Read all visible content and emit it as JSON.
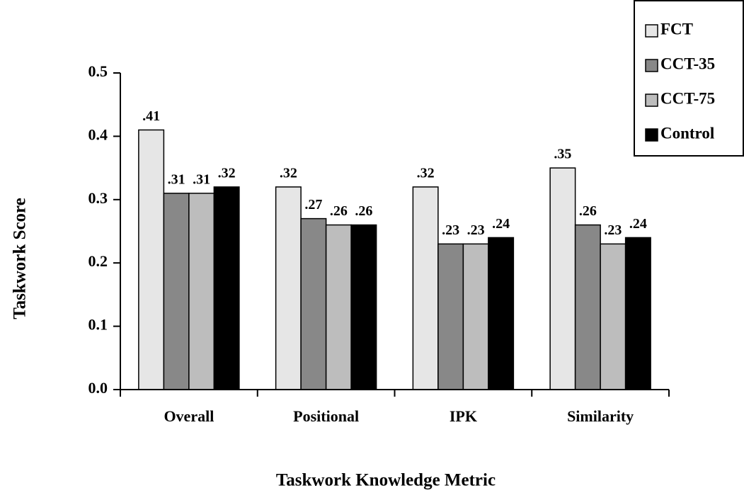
{
  "chart_data": {
    "type": "bar",
    "ylabel": "Taskwork Score",
    "xlabel": "Taskwork Knowledge Metric",
    "categories": [
      "Overall",
      "Positional",
      "IPK",
      "Similarity"
    ],
    "series": [
      {
        "name": "FCT",
        "color": "#e6e6e6",
        "values": [
          0.41,
          0.32,
          0.32,
          0.35
        ],
        "value_labels": [
          ".41",
          ".32",
          ".32",
          ".35"
        ]
      },
      {
        "name": "CCT-35",
        "color": "#888888",
        "values": [
          0.31,
          0.27,
          0.23,
          0.26
        ],
        "value_labels": [
          ".31",
          ".27",
          ".23",
          ".26"
        ]
      },
      {
        "name": "CCT-75",
        "color": "#bdbdbd",
        "values": [
          0.31,
          0.26,
          0.23,
          0.23
        ],
        "value_labels": [
          ".31",
          ".26",
          ".23",
          ".23"
        ]
      },
      {
        "name": "Control",
        "color": "#000000",
        "values": [
          0.32,
          0.26,
          0.24,
          0.24
        ],
        "value_labels": [
          ".32",
          ".26",
          ".24",
          ".24"
        ]
      }
    ],
    "ylim": [
      0,
      0.5
    ],
    "yticks": [
      {
        "value": 0,
        "label": "0.0"
      },
      0.1,
      0.2,
      0.3,
      0.4,
      0.5
    ],
    "legend": "upper right"
  }
}
